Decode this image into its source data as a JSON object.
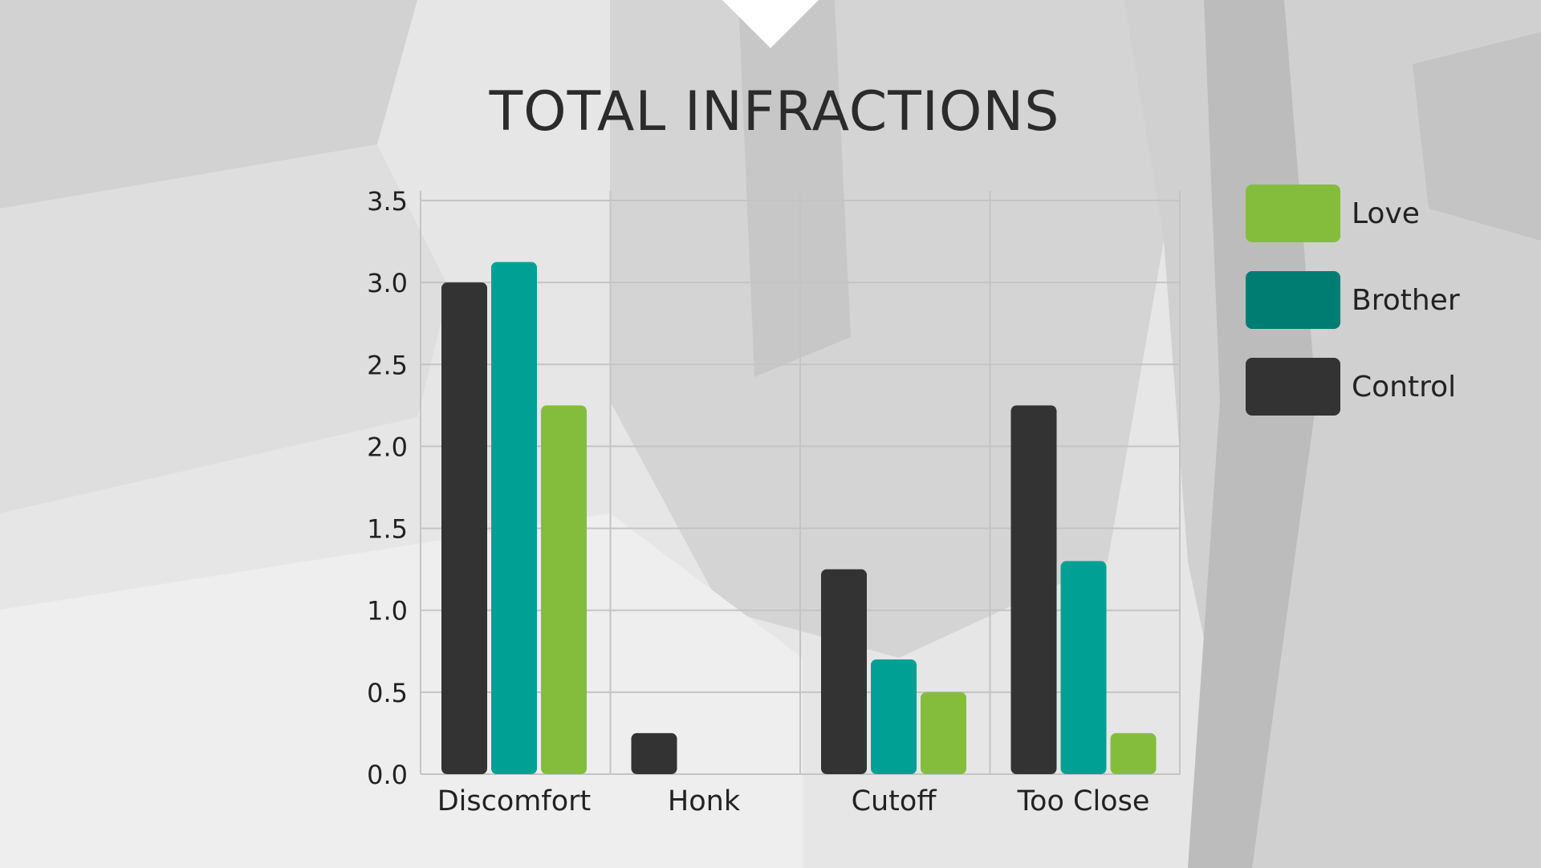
{
  "chart_data": {
    "type": "bar",
    "title": "TOTAL INFRACTIONS",
    "categories": [
      "Discomfort",
      "Honk",
      "Cutoff",
      "Too Close"
    ],
    "series": [
      {
        "name": "Control",
        "color": "#333333",
        "values": [
          3.0,
          0.25,
          1.25,
          2.25
        ]
      },
      {
        "name": "Brother",
        "color": "#00a194",
        "values": [
          3.125,
          0.0,
          0.7,
          1.3
        ]
      },
      {
        "name": "Love",
        "color": "#84bd3c",
        "values": [
          2.25,
          0.0,
          0.5,
          0.25
        ]
      }
    ],
    "ylim": [
      0,
      3.5
    ],
    "yticks": [
      "0.0",
      "0.5",
      "1.0",
      "1.5",
      "2.0",
      "2.5",
      "3.0",
      "3.5"
    ],
    "grid": true,
    "legend_position": "right",
    "legend": [
      {
        "label": "Love",
        "color": "#84bd3c"
      },
      {
        "label": "Brother",
        "color": "#007d72"
      },
      {
        "label": "Control",
        "color": "#333333"
      }
    ]
  }
}
